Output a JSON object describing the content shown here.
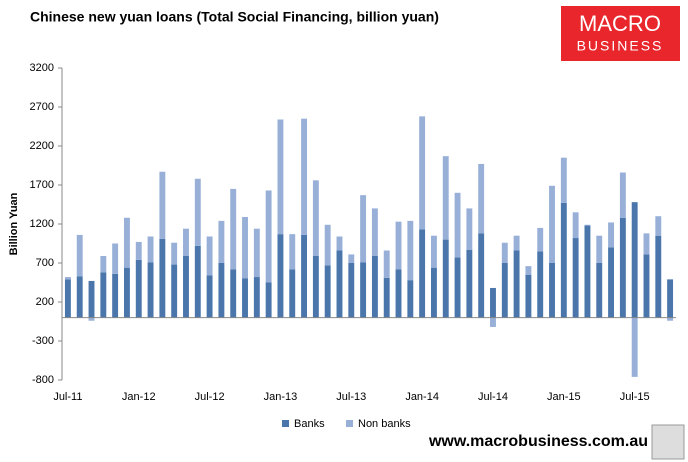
{
  "chart_data": {
    "type": "bar",
    "stacked": true,
    "title": "Chinese new yuan loans (Total Social Financing, billion yuan)",
    "ylabel": "Billion Yuan",
    "logo": [
      "MACRO",
      "BUSINESS"
    ],
    "footer": "www.macrobusiness.com.au",
    "categories": [
      "Jul-11",
      null,
      null,
      null,
      null,
      null,
      "Jan-12",
      null,
      null,
      null,
      null,
      null,
      "Jul-12",
      null,
      null,
      null,
      null,
      null,
      "Jan-13",
      null,
      null,
      null,
      null,
      null,
      "Jul-13",
      null,
      null,
      null,
      null,
      null,
      "Jan-14",
      null,
      null,
      null,
      null,
      null,
      "Jul-14",
      null,
      null,
      null,
      null,
      null,
      "Jan-15",
      null,
      null,
      null,
      null,
      null,
      "Jul-15",
      null,
      null,
      null
    ],
    "series": [
      {
        "name": "Banks",
        "color": "#4a76ab",
        "values": [
          490,
          530,
          470,
          580,
          560,
          640,
          740,
          710,
          1010,
          680,
          790,
          920,
          540,
          700,
          620,
          505,
          520,
          450,
          1070,
          620,
          1060,
          790,
          670,
          860,
          700,
          710,
          790,
          510,
          620,
          480,
          1130,
          640,
          1000,
          770,
          870,
          1080,
          380,
          700,
          860,
          550,
          850,
          700,
          1470,
          1020,
          1180,
          700,
          900,
          1280,
          1480,
          810,
          1050,
          490
        ]
      },
      {
        "name": "Non banks",
        "color": "#98b0d8",
        "values": [
          30,
          530,
          -40,
          210,
          390,
          640,
          230,
          330,
          860,
          280,
          350,
          860,
          500,
          540,
          1030,
          785,
          620,
          1180,
          1470,
          450,
          1490,
          970,
          520,
          180,
          110,
          860,
          610,
          350,
          610,
          760,
          1450,
          410,
          1070,
          830,
          530,
          890,
          -120,
          260,
          190,
          110,
          300,
          990,
          580,
          330,
          10,
          350,
          320,
          580,
          -760,
          270,
          250,
          -40
        ]
      }
    ],
    "ylim": [
      -800,
      3200
    ],
    "yticks": [
      -800,
      -300,
      200,
      700,
      1200,
      1700,
      2200,
      2700,
      3200
    ],
    "legend": "bottom"
  }
}
